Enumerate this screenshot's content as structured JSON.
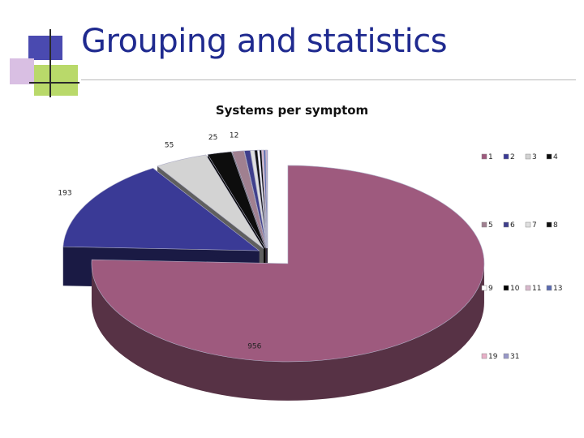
{
  "slide": {
    "title": "Grouping and statistics"
  },
  "chart_data": {
    "type": "pie",
    "style": "3d-exploded",
    "title": "Systems per symptom",
    "legend_position": "right",
    "slices": [
      {
        "label": "1",
        "value": 956,
        "color": "#9e5a7e"
      },
      {
        "label": "2",
        "value": 193,
        "color": "#3a3a96"
      },
      {
        "label": "3",
        "value": 55,
        "color": "#d3d3d3"
      },
      {
        "label": "4",
        "value": 25,
        "color": "#0d0d0d"
      },
      {
        "label": "5",
        "value": 12,
        "color": "#a08090"
      },
      {
        "label": "6",
        "value": 6,
        "color": "#3f3f8c"
      },
      {
        "label": "7",
        "value": 4,
        "color": "#e0e0e0"
      },
      {
        "label": "8",
        "value": 3,
        "color": "#101010"
      },
      {
        "label": "9",
        "value": 2,
        "color": "#ffffff"
      },
      {
        "label": "10",
        "value": 2,
        "color": "#000000"
      },
      {
        "label": "11",
        "value": 2,
        "color": "#d8b8cc"
      },
      {
        "label": "13",
        "value": 2,
        "color": "#5a6ab0"
      },
      {
        "label": "19",
        "value": 1,
        "color": "#e8b0c8"
      },
      {
        "label": "31",
        "value": 1,
        "color": "#9898c8"
      }
    ],
    "data_labels": [
      {
        "slice": 0,
        "text": "956"
      },
      {
        "slice": 1,
        "text": "193"
      },
      {
        "slice": 2,
        "text": "55"
      },
      {
        "slice": 3,
        "text": "25"
      },
      {
        "slice": 4,
        "text": "12"
      }
    ]
  }
}
